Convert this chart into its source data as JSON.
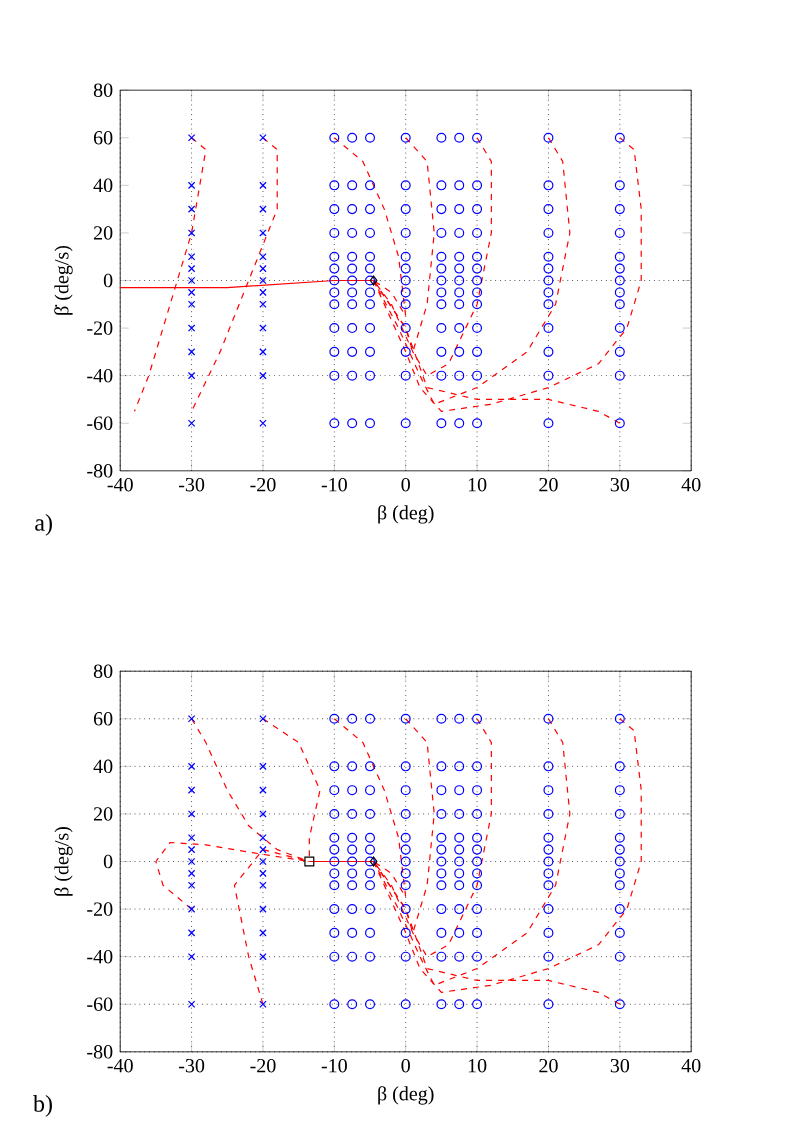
{
  "chart_data": [
    {
      "type": "line",
      "xlabel": "β (deg)",
      "ylabel": "β̇ (deg/s)",
      "xlim": [
        -40,
        40
      ],
      "ylim": [
        -80,
        80
      ],
      "xticks": [
        -40,
        -30,
        -20,
        -10,
        0,
        10,
        20,
        30,
        40
      ],
      "yticks": [
        -80,
        -60,
        -40,
        -20,
        0,
        20,
        40,
        60,
        80
      ],
      "grid": "x",
      "annotations": [
        "a)"
      ],
      "ref_lines": [
        {
          "axis": "y",
          "value": 0,
          "line_style": "dotted"
        },
        {
          "axis": "y",
          "value": -40,
          "line_style": "dotted"
        }
      ],
      "series": [
        {
          "type": "scatter",
          "marker": "cross",
          "color": "#0000ff",
          "x": [
            -30,
            -30,
            -30,
            -30,
            -30,
            -30,
            -30,
            -30,
            -30,
            -30,
            -30,
            -30,
            -30,
            -20,
            -20,
            -20,
            -20,
            -20,
            -20,
            -20,
            -20,
            -20,
            -20,
            -20,
            -20,
            -20
          ],
          "values": [
            60,
            40,
            30,
            20,
            10,
            5,
            0,
            -5,
            -10,
            -20,
            -30,
            -40,
            -60,
            60,
            40,
            30,
            20,
            10,
            5,
            0,
            -5,
            -10,
            -20,
            -30,
            -40,
            -60
          ]
        },
        {
          "type": "scatter",
          "marker": "circle",
          "color": "#0000ff",
          "x": [
            -10,
            -10,
            -10,
            -10,
            -10,
            -10,
            -10,
            -10,
            -10,
            -10,
            -10,
            -10,
            -10,
            -7.5,
            -7.5,
            -7.5,
            -7.5,
            -7.5,
            -7.5,
            -7.5,
            -7.5,
            -7.5,
            -7.5,
            -7.5,
            -7.5,
            -7.5,
            -5,
            -5,
            -5,
            -5,
            -5,
            -5,
            -5,
            -5,
            -5,
            -5,
            -5,
            -5,
            -5,
            0,
            0,
            0,
            0,
            0,
            0,
            0,
            0,
            0,
            0,
            0,
            0,
            0,
            5,
            5,
            5,
            5,
            5,
            5,
            5,
            5,
            5,
            5,
            5,
            5,
            5,
            7.5,
            7.5,
            7.5,
            7.5,
            7.5,
            7.5,
            7.5,
            7.5,
            7.5,
            7.5,
            7.5,
            7.5,
            7.5,
            10,
            10,
            10,
            10,
            10,
            10,
            10,
            10,
            10,
            10,
            10,
            10,
            10,
            20,
            20,
            20,
            20,
            20,
            20,
            20,
            20,
            20,
            20,
            20,
            20,
            20,
            30,
            30,
            30,
            30,
            30,
            30,
            30,
            30,
            30,
            30,
            30,
            30,
            30
          ],
          "values": [
            60,
            40,
            30,
            20,
            10,
            5,
            0,
            -5,
            -10,
            -20,
            -30,
            -40,
            -60,
            60,
            40,
            30,
            20,
            10,
            5,
            0,
            -5,
            -10,
            -20,
            -30,
            -40,
            -60,
            60,
            40,
            30,
            20,
            10,
            5,
            0,
            -5,
            -10,
            -20,
            -30,
            -40,
            -60,
            60,
            40,
            30,
            20,
            10,
            5,
            0,
            -5,
            -10,
            -20,
            -30,
            -40,
            -60,
            60,
            40,
            30,
            20,
            10,
            5,
            0,
            -5,
            -10,
            -20,
            -30,
            -40,
            -60,
            60,
            40,
            30,
            20,
            10,
            5,
            0,
            -5,
            -10,
            -20,
            -30,
            -40,
            -60,
            60,
            40,
            30,
            20,
            10,
            5,
            0,
            -5,
            -10,
            -20,
            -30,
            -40,
            -60,
            60,
            40,
            30,
            20,
            10,
            5,
            0,
            -5,
            -10,
            -20,
            -30,
            -40,
            -60,
            60,
            40,
            30,
            20,
            10,
            5,
            0,
            -5,
            -10,
            -20,
            -30,
            -40,
            -60
          ]
        },
        {
          "type": "line",
          "line_style": "dashed",
          "color": "#ff0000",
          "x": [
            30,
            32,
            33,
            33,
            31,
            27,
            20,
            12,
            5,
            2,
            0,
            -3,
            -4.5
          ],
          "values": [
            60,
            55,
            30,
            0,
            -20,
            -35,
            -45,
            -52,
            -55,
            -45,
            -30,
            -10,
            0
          ]
        },
        {
          "type": "line",
          "line_style": "dashed",
          "color": "#ff0000",
          "x": [
            20,
            22,
            23,
            21,
            17,
            10,
            4,
            2,
            -1,
            -4.5
          ],
          "values": [
            60,
            50,
            20,
            -10,
            -30,
            -45,
            -52,
            -40,
            -20,
            0
          ]
        },
        {
          "type": "line",
          "line_style": "dashed",
          "color": "#ff0000",
          "x": [
            10,
            12,
            12,
            10,
            6,
            3,
            1,
            -2,
            -4.5
          ],
          "values": [
            60,
            50,
            20,
            -10,
            -35,
            -40,
            -30,
            -10,
            0
          ]
        },
        {
          "type": "line",
          "line_style": "dashed",
          "color": "#ff0000",
          "x": [
            0,
            3,
            4,
            3,
            1,
            0,
            -4.5
          ],
          "values": [
            60,
            50,
            20,
            -10,
            -30,
            -20,
            0
          ]
        },
        {
          "type": "line",
          "line_style": "dashed",
          "color": "#ff0000",
          "x": [
            -10,
            -6,
            -3,
            -1,
            0,
            -2,
            -4.5
          ],
          "values": [
            60,
            50,
            30,
            10,
            -15,
            -5,
            0
          ]
        },
        {
          "type": "line",
          "line_style": "dashed",
          "color": "#ff0000",
          "x": [
            30,
            27,
            20,
            10,
            3,
            0,
            -4.5
          ],
          "values": [
            -60,
            -55,
            -50,
            -50,
            -45,
            -20,
            0
          ]
        },
        {
          "type": "line",
          "line_style": "dashed",
          "color": "#ff0000",
          "x": [
            -20,
            -18,
            -18,
            -22,
            -26,
            -30
          ],
          "values": [
            60,
            55,
            30,
            0,
            -30,
            -55
          ]
        },
        {
          "type": "line",
          "line_style": "dashed",
          "color": "#ff0000",
          "x": [
            -30,
            -28,
            -30,
            -33,
            -36,
            -38
          ],
          "values": [
            60,
            55,
            20,
            -10,
            -40,
            -55
          ]
        },
        {
          "type": "line",
          "line_style": "solid",
          "color": "#ff0000",
          "x": [
            -4.5,
            -10,
            -15,
            -25,
            -40
          ],
          "values": [
            0,
            0,
            -1,
            -3,
            -3
          ]
        },
        {
          "type": "scatter",
          "marker": "diamond",
          "color": "#000000",
          "x": [
            -4.5
          ],
          "values": [
            0
          ]
        }
      ]
    },
    {
      "type": "line",
      "xlabel": "β (deg)",
      "ylabel": "β (deg/s)",
      "xlim": [
        -40,
        40
      ],
      "ylim": [
        -80,
        80
      ],
      "xticks": [
        -40,
        -30,
        -20,
        -10,
        0,
        10,
        20,
        30,
        40
      ],
      "yticks": [
        -80,
        -60,
        -40,
        -20,
        0,
        20,
        40,
        60,
        80
      ],
      "grid": true,
      "annotations": [
        "b)"
      ],
      "series": [
        {
          "type": "scatter",
          "marker": "cross",
          "color": "#0000ff",
          "x": [
            -30,
            -30,
            -30,
            -30,
            -30,
            -30,
            -30,
            -30,
            -30,
            -30,
            -30,
            -30,
            -30,
            -20,
            -20,
            -20,
            -20,
            -20,
            -20,
            -20,
            -20,
            -20,
            -20,
            -20,
            -20,
            -20
          ],
          "values": [
            60,
            40,
            30,
            20,
            10,
            5,
            0,
            -5,
            -10,
            -20,
            -30,
            -40,
            -60,
            60,
            40,
            30,
            20,
            10,
            5,
            0,
            -5,
            -10,
            -20,
            -30,
            -40,
            -60
          ]
        },
        {
          "type": "scatter",
          "marker": "circle",
          "color": "#0000ff",
          "x": [
            -10,
            -10,
            -10,
            -10,
            -10,
            -10,
            -10,
            -10,
            -10,
            -10,
            -10,
            -10,
            -10,
            -7.5,
            -7.5,
            -7.5,
            -7.5,
            -7.5,
            -7.5,
            -7.5,
            -7.5,
            -7.5,
            -7.5,
            -7.5,
            -7.5,
            -7.5,
            -5,
            -5,
            -5,
            -5,
            -5,
            -5,
            -5,
            -5,
            -5,
            -5,
            -5,
            -5,
            -5,
            0,
            0,
            0,
            0,
            0,
            0,
            0,
            0,
            0,
            0,
            0,
            0,
            0,
            5,
            5,
            5,
            5,
            5,
            5,
            5,
            5,
            5,
            5,
            5,
            5,
            5,
            7.5,
            7.5,
            7.5,
            7.5,
            7.5,
            7.5,
            7.5,
            7.5,
            7.5,
            7.5,
            7.5,
            7.5,
            7.5,
            10,
            10,
            10,
            10,
            10,
            10,
            10,
            10,
            10,
            10,
            10,
            10,
            10,
            20,
            20,
            20,
            20,
            20,
            20,
            20,
            20,
            20,
            20,
            20,
            20,
            20,
            30,
            30,
            30,
            30,
            30,
            30,
            30,
            30,
            30,
            30,
            30,
            30,
            30
          ],
          "values": [
            60,
            40,
            30,
            20,
            10,
            5,
            0,
            -5,
            -10,
            -20,
            -30,
            -40,
            -60,
            60,
            40,
            30,
            20,
            10,
            5,
            0,
            -5,
            -10,
            -20,
            -30,
            -40,
            -60,
            60,
            40,
            30,
            20,
            10,
            5,
            0,
            -5,
            -10,
            -20,
            -30,
            -40,
            -60,
            60,
            40,
            30,
            20,
            10,
            5,
            0,
            -5,
            -10,
            -20,
            -30,
            -40,
            -60,
            60,
            40,
            30,
            20,
            10,
            5,
            0,
            -5,
            -10,
            -20,
            -30,
            -40,
            -60,
            60,
            40,
            30,
            20,
            10,
            5,
            0,
            -5,
            -10,
            -20,
            -30,
            -40,
            -60,
            60,
            40,
            30,
            20,
            10,
            5,
            0,
            -5,
            -10,
            -20,
            -30,
            -40,
            -60,
            60,
            40,
            30,
            20,
            10,
            5,
            0,
            -5,
            -10,
            -20,
            -30,
            -40,
            -60,
            60,
            40,
            30,
            20,
            10,
            5,
            0,
            -5,
            -10,
            -20,
            -30,
            -40,
            -60
          ]
        },
        {
          "type": "line",
          "line_style": "dashed",
          "color": "#ff0000",
          "x": [
            30,
            32,
            33,
            33,
            31,
            27,
            20,
            12,
            5,
            2,
            0,
            -3,
            -4.5
          ],
          "values": [
            60,
            55,
            30,
            0,
            -20,
            -35,
            -45,
            -52,
            -55,
            -45,
            -30,
            -10,
            0
          ]
        },
        {
          "type": "line",
          "line_style": "dashed",
          "color": "#ff0000",
          "x": [
            20,
            22,
            23,
            21,
            17,
            10,
            4,
            2,
            -1,
            -4.5
          ],
          "values": [
            60,
            50,
            20,
            -10,
            -30,
            -45,
            -52,
            -40,
            -20,
            0
          ]
        },
        {
          "type": "line",
          "line_style": "dashed",
          "color": "#ff0000",
          "x": [
            10,
            12,
            12,
            10,
            6,
            3,
            1,
            -2,
            -4.5
          ],
          "values": [
            60,
            50,
            20,
            -10,
            -35,
            -40,
            -30,
            -10,
            0
          ]
        },
        {
          "type": "line",
          "line_style": "dashed",
          "color": "#ff0000",
          "x": [
            0,
            3,
            4,
            3,
            1,
            0,
            -4.5
          ],
          "values": [
            60,
            50,
            20,
            -10,
            -30,
            -20,
            0
          ]
        },
        {
          "type": "line",
          "line_style": "dashed",
          "color": "#ff0000",
          "x": [
            -10,
            -6,
            -3,
            -1,
            0,
            -2,
            -4.5
          ],
          "values": [
            60,
            50,
            30,
            10,
            -15,
            -5,
            0
          ]
        },
        {
          "type": "line",
          "line_style": "dashed",
          "color": "#ff0000",
          "x": [
            30,
            27,
            20,
            10,
            3,
            0,
            -4.5
          ],
          "values": [
            -60,
            -55,
            -50,
            -50,
            -45,
            -20,
            0
          ]
        },
        {
          "type": "line",
          "line_style": "dashed",
          "color": "#ff0000",
          "x": [
            -20,
            -15,
            -12,
            -13.5,
            -13.5
          ],
          "values": [
            60,
            50,
            30,
            10,
            0
          ]
        },
        {
          "type": "line",
          "line_style": "dashed",
          "color": "#ff0000",
          "x": [
            -30,
            -28,
            -25,
            -22,
            -18,
            -13.5
          ],
          "values": [
            60,
            50,
            30,
            15,
            5,
            0
          ]
        },
        {
          "type": "line",
          "line_style": "dashed",
          "color": "#ff0000",
          "x": [
            -30,
            -34,
            -35,
            -33,
            -28,
            -20,
            -13.5
          ],
          "values": [
            -20,
            -10,
            0,
            8,
            7,
            3,
            0
          ]
        },
        {
          "type": "line",
          "line_style": "dashed",
          "color": "#ff0000",
          "x": [
            -20,
            -22,
            -24,
            -20,
            -13.5
          ],
          "values": [
            -60,
            -40,
            -10,
            5,
            0
          ]
        },
        {
          "type": "line",
          "line_style": "solid",
          "color": "#ff0000",
          "x": [
            -4.5,
            -8,
            -13.5
          ],
          "values": [
            0,
            0,
            0
          ]
        },
        {
          "type": "scatter",
          "marker": "diamond",
          "color": "#000000",
          "x": [
            -4.5
          ],
          "values": [
            0
          ]
        },
        {
          "type": "scatter",
          "marker": "square",
          "color": "#000000",
          "x": [
            -13.5
          ],
          "values": [
            0
          ]
        }
      ]
    }
  ]
}
